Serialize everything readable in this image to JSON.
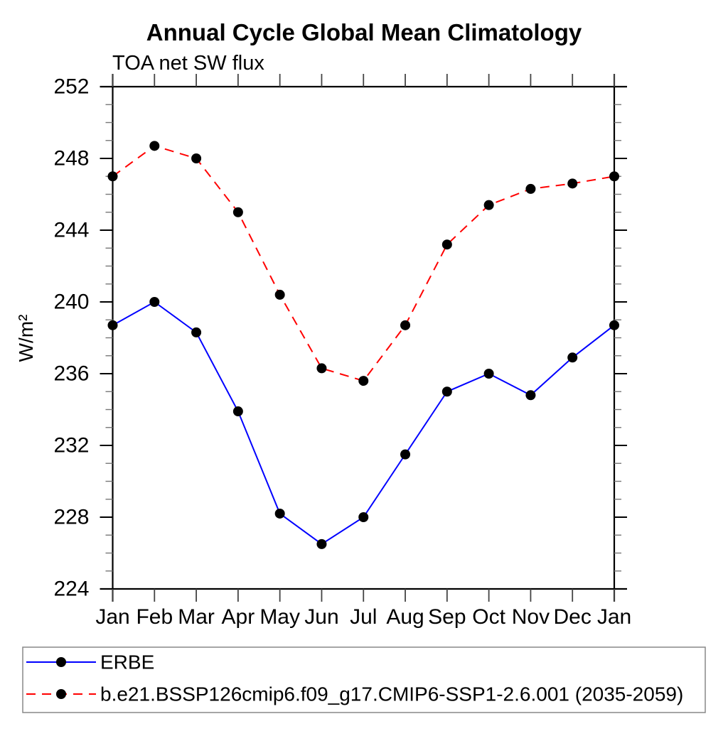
{
  "chart_data": {
    "type": "line",
    "title": "Annual Cycle Global Mean Climatology",
    "subtitle": "TOA net SW flux",
    "ylabel": "W/m²",
    "xlabel": "",
    "categories": [
      "Jan",
      "Feb",
      "Mar",
      "Apr",
      "May",
      "Jun",
      "Jul",
      "Aug",
      "Sep",
      "Oct",
      "Nov",
      "Dec",
      "Jan"
    ],
    "ylim": [
      224,
      252
    ],
    "ytick_major_interval": 4,
    "ytick_minor_interval": 1,
    "ytick_labels": [
      "224",
      "228",
      "232",
      "236",
      "240",
      "244",
      "248",
      "252"
    ],
    "grid": false,
    "legend_position": "bottom-left-box",
    "axis_color": "#000000",
    "series": [
      {
        "name": "ERBE",
        "color": "#0000ff",
        "line_style": "solid",
        "marker": "filled-circle",
        "marker_color": "#000000",
        "values": [
          238.7,
          240.0,
          238.3,
          233.9,
          228.2,
          226.5,
          228.0,
          231.5,
          235.0,
          236.0,
          234.8,
          236.9,
          238.7
        ]
      },
      {
        "name": "b.e21.BSSP126cmip6.f09_g17.CMIP6-SSP1-2.6.001 (2035-2059)",
        "color": "#ff0000",
        "line_style": "dashed",
        "marker": "filled-circle",
        "marker_color": "#000000",
        "values": [
          247.0,
          248.7,
          248.0,
          245.0,
          240.4,
          236.3,
          235.6,
          238.7,
          243.2,
          245.4,
          246.3,
          246.6,
          247.0
        ]
      }
    ]
  }
}
